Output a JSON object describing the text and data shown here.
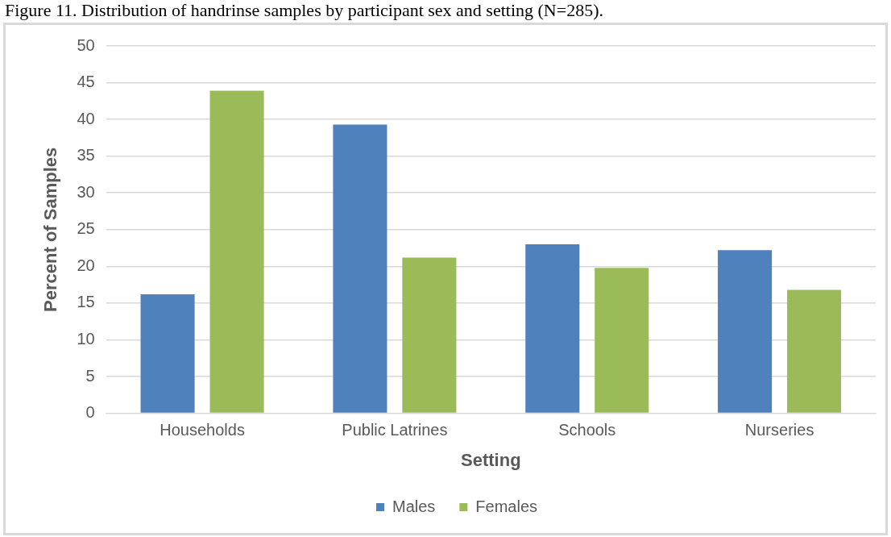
{
  "chart_data": {
    "type": "bar",
    "title": "Figure 11. Distribution of handrinse samples by participant sex and setting (N=285).",
    "xlabel": "Setting",
    "ylabel": "Percent of Samples",
    "categories": [
      "Households",
      "Public Latrines",
      "Schools",
      "Nurseries"
    ],
    "series": [
      {
        "name": "Males",
        "color": "#4f81bd",
        "values": [
          16.2,
          39.3,
          23.0,
          22.2
        ]
      },
      {
        "name": "Females",
        "color": "#9bbb59",
        "values": [
          43.9,
          21.2,
          19.8,
          16.8
        ]
      }
    ],
    "ylim": [
      0,
      50
    ],
    "yticks": [
      0,
      5,
      10,
      15,
      20,
      25,
      30,
      35,
      40,
      45,
      50
    ],
    "grid": "y",
    "legend": "bottom"
  }
}
